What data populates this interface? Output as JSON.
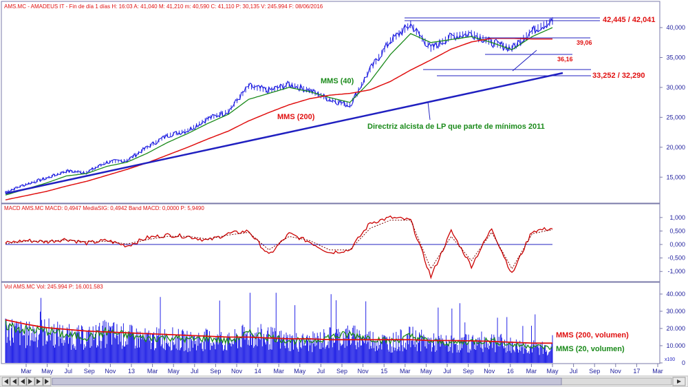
{
  "header": {
    "price_info": "AMS.MC - AMADEUS IT - Fin de día 1 días H: 16:03 A: 41,040 M: 41,210 m: 40,590 C: 41,110 P: 30,135 V: 245.994 F: 08/06/2016",
    "macd_info": "MACD  AMS.MC MACD: 0,4947 MediaSIG: 0,4942 Band  MACD: 0,0000  P: 5,9490",
    "volume_info": "Vol  AMS.MC Vol: 245.994  P: 16.001.583"
  },
  "colors": {
    "price": "#1c1ce0",
    "mms40": "#1a8a1a",
    "mms200": "#e01010",
    "trendline": "#2020c0",
    "macd": "#cc0000",
    "volume_bars": "#2323e6",
    "annotation_red": "#e01010",
    "annotation_green": "#1a8a1a",
    "panel_border": "#7a7aa8",
    "background": "#ffffff"
  },
  "annotations": {
    "resistance": "42,445 / 42,041",
    "level1": "39,06",
    "level2": "36,16",
    "support": "33,252 / 32,290",
    "mms40": "MMS (40)",
    "mms200": "MMS (200)",
    "trendline": "Directriz alcista de LP que parte de mínimos 2011",
    "vol200": "MMS (200, volumen)",
    "vol20": "MMS (20, volumen)"
  },
  "x_axis_labels": [
    "Mar",
    "May",
    "Jul",
    "Sep",
    "Nov",
    "13",
    "Mar",
    "May",
    "Jul",
    "Sep",
    "Nov",
    "14",
    "Mar",
    "May",
    "Jul",
    "Sep",
    "Nov",
    "15",
    "Mar",
    "May",
    "Jul",
    "Sep",
    "Nov",
    "16",
    "Mar",
    "May",
    "Jul",
    "Sep",
    "Nov",
    "17",
    "Mar"
  ],
  "price_axis_labels": [
    "40,000",
    "35,000",
    "30,000",
    "25,000",
    "20,000",
    "15,000"
  ],
  "macd_axis_labels": [
    "1,000",
    "0,500",
    "0,000",
    "-0,500",
    "-1,000"
  ],
  "volume_axis_labels": [
    "40.000",
    "30.000",
    "20.000",
    "10.000",
    "0"
  ],
  "volume_axis_unit": "x100",
  "chart_data": [
    {
      "type": "line",
      "panel": "price",
      "title": "AMS.MC - AMADEUS IT",
      "x": [
        "2012-01",
        "2012-03",
        "2012-05",
        "2012-07",
        "2012-09",
        "2012-11",
        "2013-01",
        "2013-03",
        "2013-05",
        "2013-07",
        "2013-09",
        "2013-11",
        "2014-01",
        "2014-03",
        "2014-05",
        "2014-07",
        "2014-09",
        "2014-11",
        "2015-01",
        "2015-03",
        "2015-05",
        "2015-07",
        "2015-09",
        "2015-11",
        "2016-01",
        "2016-03",
        "2016-05",
        "2016-06"
      ],
      "ylim": [
        11,
        43
      ],
      "series": [
        {
          "name": "AMS.MC",
          "values": [
            12.5,
            13.8,
            14.8,
            16.0,
            15.8,
            17.5,
            17.8,
            20.0,
            22.0,
            22.8,
            24.8,
            26.0,
            30.2,
            29.5,
            30.5,
            29.5,
            28.0,
            27.0,
            33.0,
            37.8,
            40.5,
            36.5,
            38.5,
            39.0,
            37.5,
            36.5,
            39.5,
            41.1
          ]
        },
        {
          "name": "MMS (40)",
          "values": [
            12.0,
            13.0,
            14.0,
            15.2,
            15.6,
            16.8,
            17.5,
            19.0,
            20.8,
            22.3,
            24.0,
            25.5,
            28.0,
            29.0,
            30.0,
            29.3,
            28.3,
            27.5,
            31.0,
            35.5,
            39.0,
            37.5,
            38.0,
            38.5,
            37.5,
            36.3,
            38.5,
            40.0
          ]
        },
        {
          "name": "MMS (200)",
          "values": [
            11.2,
            11.9,
            12.6,
            13.5,
            14.3,
            15.3,
            16.3,
            17.4,
            18.7,
            20.0,
            21.4,
            22.7,
            24.4,
            25.8,
            27.1,
            28.1,
            28.7,
            29.0,
            29.6,
            31.0,
            32.9,
            34.6,
            36.4,
            37.6,
            38.2,
            38.2,
            38.1,
            38.1
          ]
        }
      ]
    },
    {
      "type": "line",
      "panel": "macd",
      "ylim": [
        -1.3,
        1.2
      ],
      "series": [
        {
          "name": "MACD",
          "values": [
            0.05,
            0.15,
            0.1,
            0.2,
            0.05,
            0.15,
            -0.05,
            0.25,
            0.35,
            0.3,
            0.15,
            0.4,
            0.5,
            -0.4,
            0.4,
            0.1,
            -0.3,
            -0.2,
            0.8,
            1.0,
            0.9,
            -1.2,
            0.5,
            -0.8,
            0.6,
            -1.1,
            0.5,
            0.6
          ]
        },
        {
          "name": "MediaSIG",
          "values": [
            0.03,
            0.12,
            0.12,
            0.17,
            0.1,
            0.12,
            0.02,
            0.18,
            0.3,
            0.3,
            0.2,
            0.35,
            0.45,
            -0.2,
            0.3,
            0.15,
            -0.2,
            -0.2,
            0.6,
            0.9,
            0.9,
            -0.9,
            0.3,
            -0.6,
            0.45,
            -0.9,
            0.4,
            0.55
          ]
        }
      ]
    },
    {
      "type": "bar",
      "panel": "volume",
      "ylim": [
        0,
        42000
      ],
      "series": [
        {
          "name": "Vol",
          "values": [
            22000,
            18000,
            20000,
            17000,
            16000,
            19000,
            17000,
            15000,
            16000,
            14000,
            15000,
            13000,
            18000,
            16000,
            14000,
            13000,
            16000,
            17000,
            15000,
            13000,
            16000,
            13000,
            12000,
            13000,
            14000,
            11000,
            10000,
            9000
          ]
        },
        {
          "name": "MMS (20, volumen)",
          "values": [
            22000,
            19000,
            19000,
            16000,
            15000,
            18000,
            16000,
            14000,
            15000,
            13500,
            14500,
            12500,
            17000,
            15000,
            13000,
            12500,
            15000,
            16500,
            14500,
            12500,
            15500,
            12500,
            11500,
            12500,
            13000,
            10500,
            10000,
            8500
          ]
        },
        {
          "name": "MMS (200, volumen)",
          "values": [
            25000,
            22500,
            20500,
            19500,
            18500,
            18000,
            17500,
            17000,
            16500,
            16000,
            15500,
            15000,
            15000,
            14500,
            14000,
            14000,
            13500,
            13500,
            13500,
            13500,
            13500,
            13000,
            13000,
            12800,
            12500,
            12000,
            11500,
            11500
          ]
        }
      ]
    }
  ]
}
